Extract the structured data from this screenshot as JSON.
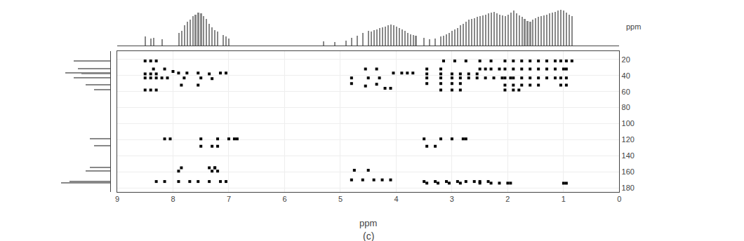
{
  "chart_data": [
    {
      "type": "scatter",
      "x": [
        8.3,
        8.15,
        7.9,
        7.7,
        7.55,
        7.35,
        7.15,
        7.05,
        7.9,
        7.3,
        7.2,
        7.85,
        7.25,
        8.35,
        8.15,
        8.0,
        7.9,
        7.75,
        7.55,
        7.35,
        7.15,
        7.05,
        7.8,
        7.5,
        7.3,
        7.85,
        7.55,
        4.8,
        4.6,
        4.4,
        4.25,
        4.1,
        4.75,
        4.5,
        4.8,
        4.55,
        4.35,
        4.2,
        4.1,
        4.8,
        4.5,
        4.3,
        4.05,
        3.9,
        3.8,
        3.7,
        3.45,
        3.25,
        3.05,
        2.85,
        2.5,
        2.3,
        2.15,
        2.0,
        1.95,
        3.5,
        3.3,
        3.1,
        2.9,
        2.75,
        2.6,
        2.5,
        2.35,
        3.45,
        3.2,
        3.0,
        2.85,
        3.45,
        3.2,
        3.0,
        2.85,
        2.7,
        2.55,
        2.4,
        2.25,
        2.1,
        1.95,
        3.45,
        3.2,
        3.0,
        2.85,
        2.7,
        2.55,
        3.45,
        3.2,
        3.15,
        2.95,
        2.75,
        2.5,
        2.3,
        2.5,
        2.4,
        2.3,
        2.15,
        2.05,
        1.9,
        1.75,
        1.6,
        1.45,
        1.3,
        1.15,
        1.0,
        0.95,
        2.05,
        1.9,
        1.75,
        1.6,
        1.45,
        1.3,
        1.15,
        1.05,
        0.95,
        0.85,
        2.05,
        1.9,
        1.75,
        1.6,
        1.45,
        1.3,
        1.15,
        1.05,
        0.95,
        2.05,
        1.9,
        1.75,
        1.6,
        1.45,
        1.05,
        0.95,
        8.5,
        8.4,
        8.3,
        8.5,
        8.4,
        8.3,
        8.2,
        8.1,
        8.5,
        8.4,
        8.3,
        8.5,
        8.4,
        8.3,
        7.5,
        7.2,
        7.0,
        6.9,
        6.85,
        7.5,
        7.3,
        7.2,
        3.5,
        3.2,
        3.0,
        3.45,
        3.3,
        2.8,
        2.75,
        3.2,
        3.0,
        2.85,
        2.05,
        1.9,
        1.8,
        1.0,
        0.95,
        8.15,
        8.05,
        7.35,
        7.25,
        4.55,
        4.35
      ],
      "y": [
        172,
        172,
        172,
        172,
        172,
        172,
        172,
        172,
        159,
        159,
        159,
        155,
        155,
        32,
        32,
        35,
        37,
        37,
        37,
        38,
        37,
        37,
        43,
        43,
        44,
        52,
        52,
        170,
        170,
        170,
        170,
        170,
        158,
        158,
        50,
        53,
        51,
        56,
        56,
        43,
        43,
        43,
        37,
        37,
        37,
        37,
        174,
        174,
        174,
        174,
        174,
        174,
        174,
        174,
        174,
        172,
        172,
        172,
        172,
        172,
        172,
        172,
        172,
        50,
        50,
        50,
        50,
        43,
        43,
        43,
        43,
        43,
        43,
        43,
        43,
        43,
        43,
        38,
        38,
        38,
        38,
        38,
        38,
        32,
        32,
        22,
        22,
        22,
        22,
        22,
        32,
        32,
        32,
        32,
        32,
        32,
        32,
        32,
        32,
        32,
        32,
        32,
        32,
        22,
        22,
        22,
        22,
        22,
        22,
        22,
        22,
        22,
        22,
        43,
        43,
        43,
        43,
        43,
        43,
        43,
        43,
        43,
        52,
        52,
        52,
        52,
        52,
        52,
        52,
        22,
        22,
        22,
        43,
        43,
        43,
        43,
        43,
        38,
        38,
        38,
        58,
        58,
        58,
        119,
        119,
        119,
        119,
        119,
        128,
        128,
        128,
        119,
        119,
        119,
        128,
        128,
        119,
        119,
        58,
        58,
        58,
        58,
        58,
        58,
        174,
        174,
        119,
        119,
        155,
        155,
        32,
        32
      ],
      "xlim": [
        9,
        0
      ],
      "ylim": [
        185,
        10
      ],
      "xticks": [
        9,
        8,
        7,
        6,
        5,
        4,
        3,
        2,
        1,
        0
      ],
      "yticks": [
        20,
        40,
        60,
        80,
        100,
        120,
        140,
        160,
        180
      ],
      "grid": true,
      "x_label": "ppm",
      "color": "#000000",
      "marker": "square",
      "annotations": [
        "(c)"
      ]
    },
    {
      "type": "bar",
      "x": [
        8.5,
        8.4,
        8.35,
        8.2,
        7.9,
        7.85,
        7.8,
        7.75,
        7.7,
        7.65,
        7.6,
        7.55,
        7.5,
        7.45,
        7.4,
        7.35,
        7.3,
        7.25,
        7.2,
        7.1,
        7.05,
        7.0,
        5.3,
        5.1,
        4.9,
        4.8,
        4.7,
        4.6,
        4.5,
        4.45,
        4.4,
        4.35,
        4.3,
        4.25,
        4.2,
        4.15,
        4.1,
        4.05,
        4.0,
        3.95,
        3.9,
        3.85,
        3.8,
        3.75,
        3.7,
        3.65,
        3.5,
        3.4,
        3.3,
        3.2,
        3.15,
        3.1,
        3.05,
        3.0,
        2.95,
        2.9,
        2.85,
        2.8,
        2.75,
        2.7,
        2.65,
        2.6,
        2.55,
        2.5,
        2.45,
        2.4,
        2.35,
        2.3,
        2.25,
        2.2,
        2.15,
        2.1,
        2.05,
        2.0,
        1.95,
        1.9,
        1.85,
        1.8,
        1.75,
        1.7,
        1.65,
        1.6,
        1.55,
        1.5,
        1.45,
        1.4,
        1.35,
        1.3,
        1.25,
        1.2,
        1.15,
        1.1,
        1.05,
        1.0,
        0.95,
        0.9,
        0.85
      ],
      "values": [
        0.25,
        0.2,
        0.22,
        0.18,
        0.35,
        0.4,
        0.55,
        0.65,
        0.7,
        0.8,
        0.85,
        0.9,
        0.88,
        0.8,
        0.72,
        0.6,
        0.5,
        0.42,
        0.38,
        0.3,
        0.25,
        0.2,
        0.12,
        0.1,
        0.15,
        0.22,
        0.28,
        0.35,
        0.4,
        0.38,
        0.42,
        0.45,
        0.48,
        0.5,
        0.52,
        0.55,
        0.58,
        0.55,
        0.52,
        0.48,
        0.45,
        0.4,
        0.35,
        0.32,
        0.3,
        0.28,
        0.22,
        0.18,
        0.2,
        0.25,
        0.28,
        0.32,
        0.35,
        0.4,
        0.45,
        0.48,
        0.55,
        0.6,
        0.65,
        0.7,
        0.72,
        0.75,
        0.78,
        0.8,
        0.82,
        0.85,
        0.88,
        0.9,
        0.92,
        0.88,
        0.85,
        0.82,
        0.8,
        0.85,
        0.9,
        0.95,
        0.88,
        0.82,
        0.78,
        0.72,
        0.68,
        0.65,
        0.7,
        0.75,
        0.78,
        0.8,
        0.82,
        0.85,
        0.88,
        0.9,
        0.92,
        0.95,
        0.98,
        0.95,
        0.9,
        0.85,
        0.8
      ],
      "xlim": [
        9,
        0
      ],
      "ylim": [
        0,
        1.05
      ],
      "tick_labels": false,
      "color": "#888888",
      "annotations": [
        "ppm"
      ]
    },
    {
      "type": "bar",
      "orientation": "horizontal",
      "y": [
        172,
        174,
        159,
        155,
        32,
        37,
        43,
        52,
        119,
        128,
        58,
        22,
        38
      ],
      "values": [
        0.5,
        0.6,
        0.3,
        0.25,
        0.4,
        0.55,
        0.45,
        0.3,
        0.25,
        0.2,
        0.2,
        0.45,
        0.35
      ],
      "xlim": [
        1,
        0
      ],
      "ylim": [
        185,
        10
      ],
      "tick_labels": false,
      "color": "#888888"
    }
  ]
}
